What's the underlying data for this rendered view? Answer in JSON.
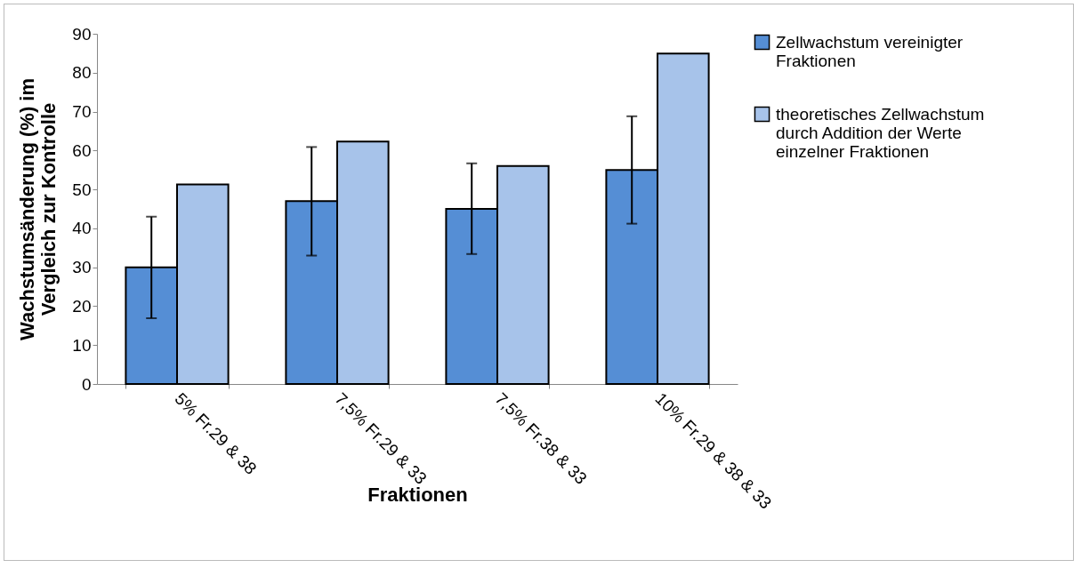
{
  "chart_data": {
    "type": "bar",
    "xlabel": "Fraktionen",
    "ylabel": "Wachstumsänderung (%) im Vergleich zur Kontrolle",
    "categories": [
      "5% Fr.29 & 38",
      "7,5% Fr.29 & 33",
      "7,5% Fr.38 & 33",
      "10% Fr.29 & 38 & 33"
    ],
    "series": [
      {
        "name": "Zellwachstum  vereinigter Fraktionen",
        "color": "#558ed5",
        "values": [
          30,
          47,
          45,
          55
        ],
        "errors": [
          [
            16.9,
            43
          ],
          [
            33,
            60.9
          ],
          [
            33.4,
            56.7
          ],
          [
            41.2,
            68.8
          ]
        ]
      },
      {
        "name": "theoretisches Zellwachstum durch Addition der Werte einzelner Fraktionen",
        "color": "#a7c3ea",
        "values": [
          51.3,
          62.3,
          56,
          84.9
        ]
      }
    ],
    "ylim": [
      0,
      90
    ],
    "yticks": [
      0,
      10,
      20,
      30,
      40,
      50,
      60,
      70,
      80,
      90
    ],
    "grid": false,
    "legend": "right"
  }
}
